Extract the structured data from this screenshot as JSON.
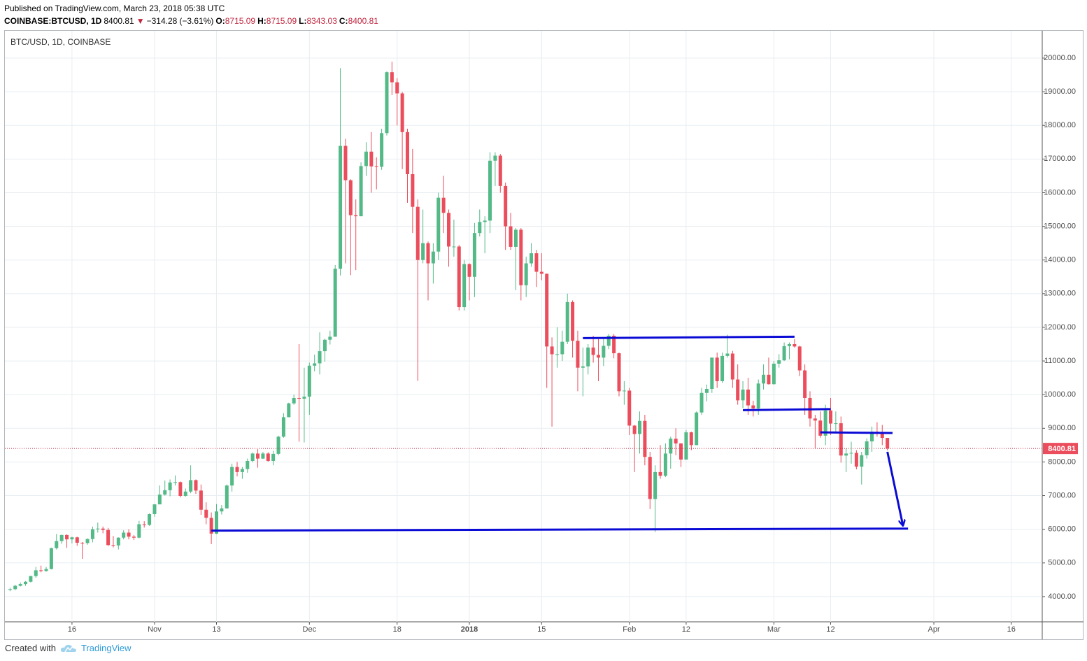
{
  "header": {
    "published": "Published on TradingView.com, March 23, 2018 05:38 UTC",
    "symbol": "COINBASE:BTCUSD, 1D",
    "direction": "▼",
    "change": {
      "value": -314.28,
      "label": "−314.28"
    },
    "change_percent": {
      "value": -3.61,
      "label": "(−3.61%)"
    },
    "ohlc_labels": [
      "O:",
      "H:",
      "L:",
      "C:"
    ]
  },
  "footer": {
    "created": "Created with",
    "brand": "TradingView"
  },
  "chart_data": {
    "type": "candlestick",
    "title": "BTC/USD, 1D, COINBASE",
    "up_color": "#53b987",
    "down_color": "#eb4d5c",
    "grid": true,
    "last_line_color": "#c2233d",
    "drawing_color": "#0b0bd6",
    "x": [
      "2017-10-04",
      "2017-10-05",
      "2017-10-06",
      "2017-10-07",
      "2017-10-08",
      "2017-10-09",
      "2017-10-10",
      "2017-10-11",
      "2017-10-12",
      "2017-10-13",
      "2017-10-14",
      "2017-10-15",
      "2017-10-16",
      "2017-10-17",
      "2017-10-18",
      "2017-10-19",
      "2017-10-20",
      "2017-10-21",
      "2017-10-22",
      "2017-10-23",
      "2017-10-24",
      "2017-10-25",
      "2017-10-26",
      "2017-10-27",
      "2017-10-28",
      "2017-10-29",
      "2017-10-30",
      "2017-10-31",
      "2017-11-01",
      "2017-11-02",
      "2017-11-03",
      "2017-11-04",
      "2017-11-05",
      "2017-11-06",
      "2017-11-07",
      "2017-11-08",
      "2017-11-09",
      "2017-11-10",
      "2017-11-11",
      "2017-11-12",
      "2017-11-13",
      "2017-11-14",
      "2017-11-15",
      "2017-11-16",
      "2017-11-17",
      "2017-11-18",
      "2017-11-19",
      "2017-11-20",
      "2017-11-21",
      "2017-11-22",
      "2017-11-23",
      "2017-11-24",
      "2017-11-25",
      "2017-11-26",
      "2017-11-27",
      "2017-11-28",
      "2017-11-29",
      "2017-11-30",
      "2017-12-01",
      "2017-12-02",
      "2017-12-03",
      "2017-12-04",
      "2017-12-05",
      "2017-12-06",
      "2017-12-07",
      "2017-12-08",
      "2017-12-09",
      "2017-12-10",
      "2017-12-11",
      "2017-12-12",
      "2017-12-13",
      "2017-12-14",
      "2017-12-15",
      "2017-12-16",
      "2017-12-17",
      "2017-12-18",
      "2017-12-19",
      "2017-12-20",
      "2017-12-21",
      "2017-12-22",
      "2017-12-23",
      "2017-12-24",
      "2017-12-25",
      "2017-12-26",
      "2017-12-27",
      "2017-12-28",
      "2017-12-29",
      "2017-12-30",
      "2017-12-31",
      "2018-01-01",
      "2018-01-02",
      "2018-01-03",
      "2018-01-04",
      "2018-01-05",
      "2018-01-06",
      "2018-01-07",
      "2018-01-08",
      "2018-01-09",
      "2018-01-10",
      "2018-01-11",
      "2018-01-12",
      "2018-01-13",
      "2018-01-14",
      "2018-01-15",
      "2018-01-16",
      "2018-01-17",
      "2018-01-18",
      "2018-01-19",
      "2018-01-20",
      "2018-01-21",
      "2018-01-22",
      "2018-01-23",
      "2018-01-24",
      "2018-01-25",
      "2018-01-26",
      "2018-01-27",
      "2018-01-28",
      "2018-01-29",
      "2018-01-30",
      "2018-01-31",
      "2018-02-01",
      "2018-02-02",
      "2018-02-03",
      "2018-02-04",
      "2018-02-05",
      "2018-02-06",
      "2018-02-07",
      "2018-02-08",
      "2018-02-09",
      "2018-02-10",
      "2018-02-11",
      "2018-02-12",
      "2018-02-13",
      "2018-02-14",
      "2018-02-15",
      "2018-02-16",
      "2018-02-17",
      "2018-02-18",
      "2018-02-19",
      "2018-02-20",
      "2018-02-21",
      "2018-02-22",
      "2018-02-23",
      "2018-02-24",
      "2018-02-25",
      "2018-02-26",
      "2018-02-27",
      "2018-02-28",
      "2018-03-01",
      "2018-03-02",
      "2018-03-03",
      "2018-03-04",
      "2018-03-05",
      "2018-03-06",
      "2018-03-07",
      "2018-03-08",
      "2018-03-09",
      "2018-03-10",
      "2018-03-11",
      "2018-03-12",
      "2018-03-13",
      "2018-03-14",
      "2018-03-15",
      "2018-03-16",
      "2018-03-17",
      "2018-03-18",
      "2018-03-19",
      "2018-03-20",
      "2018-03-21",
      "2018-03-22",
      "2018-03-23"
    ],
    "open": [
      4200,
      4220,
      4320,
      4370,
      4440,
      4610,
      4780,
      4760,
      4820,
      5440,
      5650,
      5830,
      5700,
      5760,
      5600,
      5590,
      5710,
      6000,
      6020,
      5980,
      5530,
      5520,
      5750,
      5900,
      5780,
      5750,
      6150,
      6130,
      6450,
      6740,
      7030,
      7160,
      7390,
      7400,
      6990,
      7120,
      7460,
      7150,
      6580,
      6340,
      5870,
      6530,
      6620,
      7300,
      7850,
      7700,
      7790,
      8030,
      8250,
      8100,
      8250,
      8030,
      8240,
      8750,
      9330,
      9740,
      9900,
      9880,
      9940,
      10860,
      10930,
      11290,
      11630,
      11720,
      13740,
      17390,
      16370,
      15330,
      15300,
      16790,
      17220,
      16780,
      16770,
      17770,
      19580,
      19280,
      18950,
      17800,
      16550,
      15580,
      14000,
      14500,
      13900,
      14250,
      15850,
      15400,
      14400,
      14400,
      12600,
      13880,
      13500,
      14800,
      15130,
      15170,
      16950,
      17100,
      16200,
      15000,
      14390,
      14900,
      13250,
      13900,
      14200,
      13650,
      13590,
      11430,
      11200,
      11200,
      11570,
      12750,
      11600,
      10800,
      10840,
      11400,
      11180,
      11100,
      11450,
      11750,
      11230,
      10100,
      10120,
      9080,
      8830,
      9220,
      8150,
      6900,
      7700,
      7590,
      8250,
      8690,
      8550,
      8070,
      8880,
      8500,
      9470,
      10050,
      10170,
      11100,
      10400,
      11150,
      11220,
      10450,
      9830,
      10150,
      9680,
      9590,
      10330,
      10590,
      10310,
      10920,
      11020,
      11440,
      11500,
      11430,
      10720,
      9900,
      9290,
      9230,
      8780,
      9530,
      9140,
      9150,
      8190,
      8250,
      8270,
      7860,
      8200,
      8610,
      8900,
      8890,
      8715.09
    ],
    "high": [
      4260,
      4350,
      4420,
      4460,
      4620,
      4880,
      4920,
      4880,
      5450,
      5860,
      5840,
      5850,
      5780,
      5780,
      5620,
      5730,
      6080,
      6200,
      6080,
      6040,
      5800,
      5760,
      5970,
      6000,
      5830,
      6250,
      6240,
      6470,
      6750,
      7300,
      7450,
      7480,
      7600,
      7420,
      7210,
      7900,
      7480,
      7330,
      6800,
      6500,
      6750,
      6720,
      7330,
      7950,
      8000,
      7850,
      8100,
      8280,
      8380,
      8300,
      8290,
      8330,
      8780,
      9450,
      9760,
      10000,
      11500,
      10800,
      10950,
      11190,
      11850,
      11660,
      11900,
      13850,
      19700,
      17600,
      16400,
      15800,
      16900,
      17500,
      17800,
      17050,
      17900,
      19600,
      19890,
      19400,
      18990,
      17900,
      17300,
      15800,
      15500,
      14550,
      14500,
      16000,
      16500,
      15500,
      15200,
      14450,
      14000,
      13900,
      15100,
      15500,
      15300,
      17200,
      17200,
      17150,
      16300,
      15400,
      14950,
      14950,
      14100,
      14500,
      14300,
      14200,
      13600,
      11700,
      12000,
      11900,
      13000,
      12800,
      11900,
      11400,
      11500,
      11750,
      11650,
      11650,
      11800,
      11800,
      11250,
      10400,
      10200,
      9100,
      9500,
      9400,
      8300,
      7900,
      8500,
      8550,
      8750,
      9000,
      8560,
      8950,
      8900,
      9500,
      10200,
      10300,
      11100,
      11250,
      11250,
      11780,
      11300,
      10900,
      10400,
      10500,
      9820,
      10450,
      10900,
      11100,
      11000,
      11200,
      11550,
      11550,
      11650,
      11450,
      10900,
      10100,
      9400,
      9500,
      9700,
      9900,
      9500,
      9350,
      8400,
      8600,
      8350,
      8300,
      8700,
      9050,
      9180,
      9100,
      8715.09
    ],
    "low": [
      4160,
      4190,
      4300,
      4320,
      4420,
      4560,
      4720,
      4740,
      4810,
      5400,
      5570,
      5450,
      5580,
      5510,
      5120,
      5540,
      5610,
      5900,
      5880,
      5500,
      5460,
      5400,
      5700,
      5700,
      5680,
      5730,
      6050,
      6100,
      6370,
      6740,
      7000,
      6980,
      7300,
      6950,
      6970,
      7070,
      7050,
      6430,
      6150,
      5560,
      5860,
      6440,
      6620,
      7120,
      7570,
      7500,
      7680,
      7990,
      7830,
      8090,
      8010,
      7900,
      8200,
      8720,
      9330,
      9700,
      8600,
      8580,
      9400,
      10690,
      10600,
      10980,
      11490,
      11720,
      13540,
      13900,
      13550,
      13700,
      15300,
      16500,
      16000,
      16100,
      16680,
      17700,
      18900,
      18000,
      16700,
      15700,
      14800,
      10410,
      13900,
      12800,
      13300,
      14000,
      14800,
      13800,
      14100,
      12500,
      12500,
      12800,
      12900,
      14700,
      14200,
      14800,
      16200,
      16000,
      14300,
      14300,
      13100,
      12800,
      12900,
      13800,
      13200,
      13400,
      10200,
      9050,
      10800,
      11000,
      11500,
      11100,
      10100,
      9950,
      10600,
      10950,
      10400,
      10850,
      11350,
      11080,
      9950,
      9700,
      8800,
      7700,
      8250,
      7900,
      6600,
      5920,
      7500,
      7550,
      7800,
      8200,
      7850,
      8070,
      8350,
      8500,
      9400,
      9800,
      10050,
      10200,
      10350,
      11100,
      10200,
      9700,
      9600,
      9400,
      9350,
      9400,
      10150,
      10300,
      10300,
      10800,
      11000,
      11050,
      11400,
      10550,
      9400,
      9050,
      8400,
      8720,
      8500,
      8800,
      8850,
      7980,
      7700,
      7950,
      7780,
      7330,
      8100,
      8300,
      8750,
      8500,
      8343.03
    ],
    "close": [
      4220,
      4320,
      4370,
      4440,
      4610,
      4780,
      4760,
      4820,
      5440,
      5650,
      5830,
      5700,
      5760,
      5600,
      5590,
      5710,
      6000,
      6020,
      5980,
      5530,
      5520,
      5750,
      5900,
      5780,
      5750,
      6150,
      6130,
      6450,
      6740,
      7030,
      7160,
      7390,
      7400,
      6990,
      7120,
      7460,
      7150,
      6580,
      6340,
      5870,
      6530,
      6620,
      7300,
      7850,
      7700,
      7790,
      8030,
      8250,
      8100,
      8250,
      8030,
      8240,
      8750,
      9330,
      9740,
      9900,
      9880,
      9940,
      10860,
      10930,
      11290,
      11630,
      11720,
      13740,
      17390,
      16370,
      15330,
      15300,
      16790,
      17220,
      16780,
      16770,
      17770,
      19580,
      19280,
      18950,
      17800,
      16550,
      15580,
      14000,
      14500,
      13900,
      14250,
      15850,
      15400,
      14400,
      14400,
      12600,
      13880,
      13500,
      14800,
      15130,
      15170,
      16950,
      17100,
      16200,
      15000,
      14390,
      14900,
      13250,
      13900,
      14200,
      13650,
      13590,
      11430,
      11200,
      11200,
      11570,
      12750,
      11600,
      10800,
      10840,
      11400,
      11180,
      11100,
      11450,
      11750,
      11230,
      10100,
      10120,
      9080,
      8830,
      9220,
      8150,
      6900,
      7700,
      7590,
      8250,
      8690,
      8550,
      8070,
      8880,
      8500,
      9470,
      10050,
      10170,
      11100,
      10400,
      11150,
      11220,
      10450,
      9830,
      10150,
      9680,
      9590,
      10330,
      10590,
      10310,
      10920,
      11020,
      11440,
      11500,
      11430,
      10720,
      9900,
      9290,
      9230,
      8780,
      9530,
      9140,
      9150,
      8190,
      8250,
      8270,
      7860,
      8200,
      8610,
      8900,
      8890,
      8715.09,
      8400.81
    ],
    "xlim": [
      "2017-10-03",
      "2018-04-22"
    ],
    "xticks": [
      {
        "value": "2017-10-16",
        "label": "16"
      },
      {
        "value": "2017-11-01",
        "label": "Nov"
      },
      {
        "value": "2017-11-13",
        "label": "13"
      },
      {
        "value": "2017-12-01",
        "label": "Dec"
      },
      {
        "value": "2017-12-18",
        "label": "18"
      },
      {
        "value": "2018-01-01",
        "label": "2018"
      },
      {
        "value": "2018-01-15",
        "label": "15"
      },
      {
        "value": "2018-02-01",
        "label": "Feb"
      },
      {
        "value": "2018-02-12",
        "label": "12"
      },
      {
        "value": "2018-03-01",
        "label": "Mar"
      },
      {
        "value": "2018-03-12",
        "label": "12"
      },
      {
        "value": "2018-04-01",
        "label": "Apr"
      },
      {
        "value": "2018-04-16",
        "label": "16"
      }
    ],
    "ylim": [
      3250,
      20810
    ],
    "yticks": [
      {
        "value": 4000,
        "label": "4000.00"
      },
      {
        "value": 5000,
        "label": "5000.00"
      },
      {
        "value": 6000,
        "label": "6000.00"
      },
      {
        "value": 7000,
        "label": "7000.00"
      },
      {
        "value": 8000,
        "label": "8000.00"
      },
      {
        "value": 9000,
        "label": "9000.00"
      },
      {
        "value": 10000,
        "label": "10000.00"
      },
      {
        "value": 11000,
        "label": "11000.00"
      },
      {
        "value": 12000,
        "label": "12000.00"
      },
      {
        "value": 13000,
        "label": "13000.00"
      },
      {
        "value": 14000,
        "label": "14000.00"
      },
      {
        "value": 15000,
        "label": "15000.00"
      },
      {
        "value": 16000,
        "label": "16000.00"
      },
      {
        "value": 17000,
        "label": "17000.00"
      },
      {
        "value": 18000,
        "label": "18000.00"
      },
      {
        "value": 19000,
        "label": "19000.00"
      },
      {
        "value": 20000,
        "label": "20000.00"
      }
    ],
    "drawings": [
      {
        "x": [
          "2017-11-12",
          "2018-03-27"
        ],
        "y": [
          5960,
          6020
        ]
      },
      {
        "x": [
          "2018-01-23",
          "2018-03-05"
        ],
        "y": [
          11680,
          11720
        ]
      },
      {
        "x": [
          "2018-02-23",
          "2018-03-12"
        ],
        "y": [
          9540,
          9570
        ]
      },
      {
        "x": [
          "2018-03-10",
          "2018-03-24"
        ],
        "y": [
          8880,
          8860
        ]
      }
    ],
    "arrow": {
      "x": [
        "2018-03-23",
        "2018-03-26"
      ],
      "y": [
        8300,
        6120
      ]
    }
  }
}
